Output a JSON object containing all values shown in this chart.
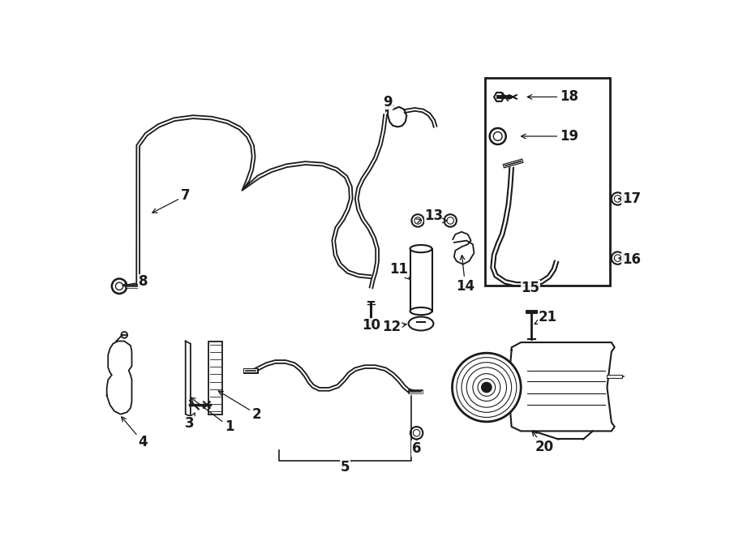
{
  "bg_color": "#ffffff",
  "line_color": "#1a1a1a",
  "lfs": 12,
  "lfw": "bold"
}
